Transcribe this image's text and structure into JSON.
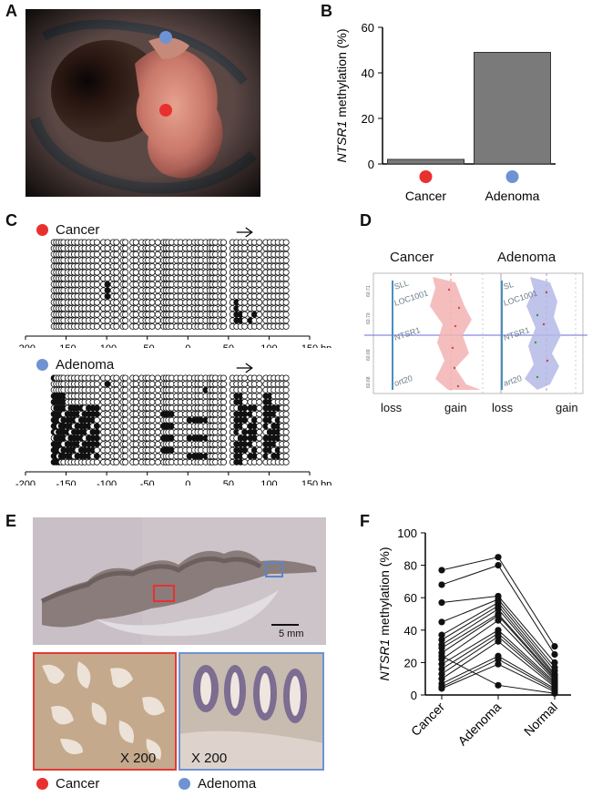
{
  "panels": {
    "a": "A",
    "b": "B",
    "c": "C",
    "d": "D",
    "e": "E",
    "f": "F"
  },
  "legend": {
    "cancer": "Cancer",
    "adenoma": "Adenoma"
  },
  "colors": {
    "cancer": "#e8312f",
    "adenoma": "#6f93d2",
    "bar": "#7a7a7a"
  },
  "bp": {
    "unit": "bp",
    "ticks": [
      "-200",
      "-150",
      "-100",
      "-50",
      "0",
      "50",
      "100",
      "150"
    ]
  },
  "panel_d": {
    "title_cancer": "Cancer",
    "title_adenoma": "Adenoma",
    "loss": "loss",
    "gain": "gain",
    "genes_cancer": [
      "SLL",
      "LOC1001",
      "NTSR1",
      "ort20"
    ],
    "genes_adenoma": [
      "SL",
      "LOC1001",
      "NTSR1",
      "art20"
    ]
  },
  "panel_e": {
    "scale": "5 mm",
    "mag_left": "X 200",
    "mag_right": "X 200"
  },
  "chart_data": [
    {
      "type": "bar",
      "panel": "B",
      "title": "",
      "ylabel": "NTSR1 methylation (%)",
      "ylabel_gene": "NTSR1",
      "ylabel_rest": " methylation (%)",
      "categories": [
        "Cancer",
        "Adenoma"
      ],
      "values": [
        2,
        49
      ],
      "ylim": [
        0,
        60
      ],
      "yticks": [
        "0",
        "20",
        "40",
        "60"
      ]
    },
    {
      "type": "line",
      "panel": "F",
      "ylabel": "NTSR1 methylation (%)",
      "ylabel_gene": "NTSR1",
      "ylabel_rest": " methylation (%)",
      "categories": [
        "Cancer",
        "Adenoma",
        "Normal"
      ],
      "ylim": [
        0,
        100
      ],
      "yticks": [
        "0",
        "20",
        "40",
        "60",
        "80",
        "100"
      ],
      "series": [
        [
          77,
          85,
          30
        ],
        [
          68,
          80,
          25
        ],
        [
          57,
          61,
          20
        ],
        [
          45,
          59,
          17
        ],
        [
          37,
          57,
          15
        ],
        [
          34,
          55,
          13
        ],
        [
          31,
          53,
          12
        ],
        [
          29,
          50,
          11
        ],
        [
          26,
          49,
          10
        ],
        [
          22,
          46,
          9
        ],
        [
          19,
          40,
          8
        ],
        [
          16,
          38,
          7
        ],
        [
          13,
          36,
          6
        ],
        [
          10,
          33,
          5
        ],
        [
          7,
          24,
          4
        ],
        [
          5,
          22,
          3
        ],
        [
          4,
          19,
          2
        ],
        [
          24,
          6,
          1
        ]
      ]
    }
  ]
}
